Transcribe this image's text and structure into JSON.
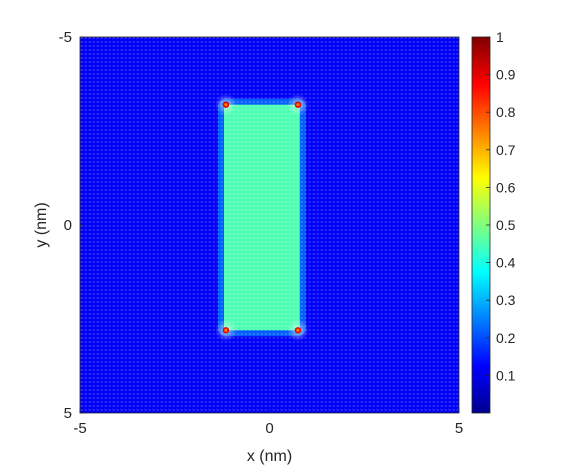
{
  "chart_data": {
    "type": "heatmap",
    "title": "",
    "xlabel": "x (nm)",
    "ylabel": "y (nm)",
    "xlim": [
      -5,
      5
    ],
    "ylim": [
      -5,
      5
    ],
    "y_axis_reversed": true,
    "x_ticks": [
      -5,
      0,
      5
    ],
    "x_tick_labels": [
      "-5",
      "0",
      "5"
    ],
    "y_ticks": [
      -5,
      0,
      5
    ],
    "y_tick_labels": [
      "-5",
      "0",
      "5"
    ],
    "colormap": "jet",
    "clim": [
      0,
      1
    ],
    "colorbar_ticks": [
      0.1,
      0.2,
      0.3,
      0.4,
      0.5,
      0.6,
      0.7,
      0.8,
      0.9,
      1
    ],
    "colorbar_tick_labels": [
      "0.1",
      "0.2",
      "0.3",
      "0.4",
      "0.5",
      "0.6",
      "0.7",
      "0.8",
      "0.9",
      "1"
    ],
    "grid": false,
    "overlay": "vector field (quiver arrows)",
    "background_value": 0.12,
    "regions": [
      {
        "shape": "rectangle",
        "x": [
          -1.2,
          0.8
        ],
        "y": [
          -3.2,
          2.8
        ],
        "value": 0.45
      }
    ],
    "hotspots": [
      {
        "x": -1.15,
        "y": -3.2,
        "value": 1.0
      },
      {
        "x": 0.75,
        "y": -3.2,
        "value": 1.0
      },
      {
        "x": -1.15,
        "y": 2.8,
        "value": 1.0
      },
      {
        "x": 0.75,
        "y": 2.8,
        "value": 1.0
      }
    ]
  }
}
